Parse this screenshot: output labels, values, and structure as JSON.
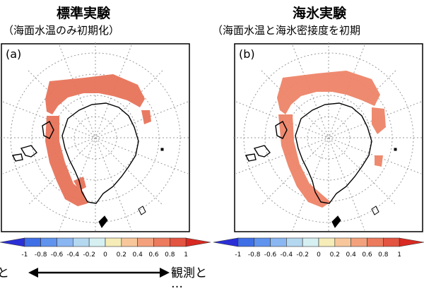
{
  "panels": [
    {
      "title": "標準実験",
      "subtitle": "（海面水温のみ初期化）",
      "label": "(a)",
      "anomaly_fill": "#e8735a"
    },
    {
      "title": "海氷実験",
      "subtitle": "（海面水温と海氷密接度を初期",
      "label": "(b)",
      "anomaly_fill": "#ee8468"
    }
  ],
  "colorbar": {
    "ticks": [
      "-1",
      "-0.8",
      "-0.6",
      "-0.4",
      "-0.2",
      "0",
      "0.2",
      "0.4",
      "0.6",
      "0.8",
      "1"
    ],
    "colors": [
      "#2a2fd6",
      "#3f6fe6",
      "#5f93ee",
      "#8ab6f2",
      "#b4d8f0",
      "#d6f0f2",
      "#f6ecb8",
      "#f7c79b",
      "#f3a17c",
      "#ec7a5d",
      "#e35441",
      "#d82a22"
    ]
  },
  "legend_text": {
    "left_line1": "と",
    "right_line1": "観測と",
    "left_line2": "",
    "right_line2": "…"
  },
  "colors": {
    "coast": "#000000",
    "grid": "#9a9a9a",
    "frame": "#000000"
  }
}
